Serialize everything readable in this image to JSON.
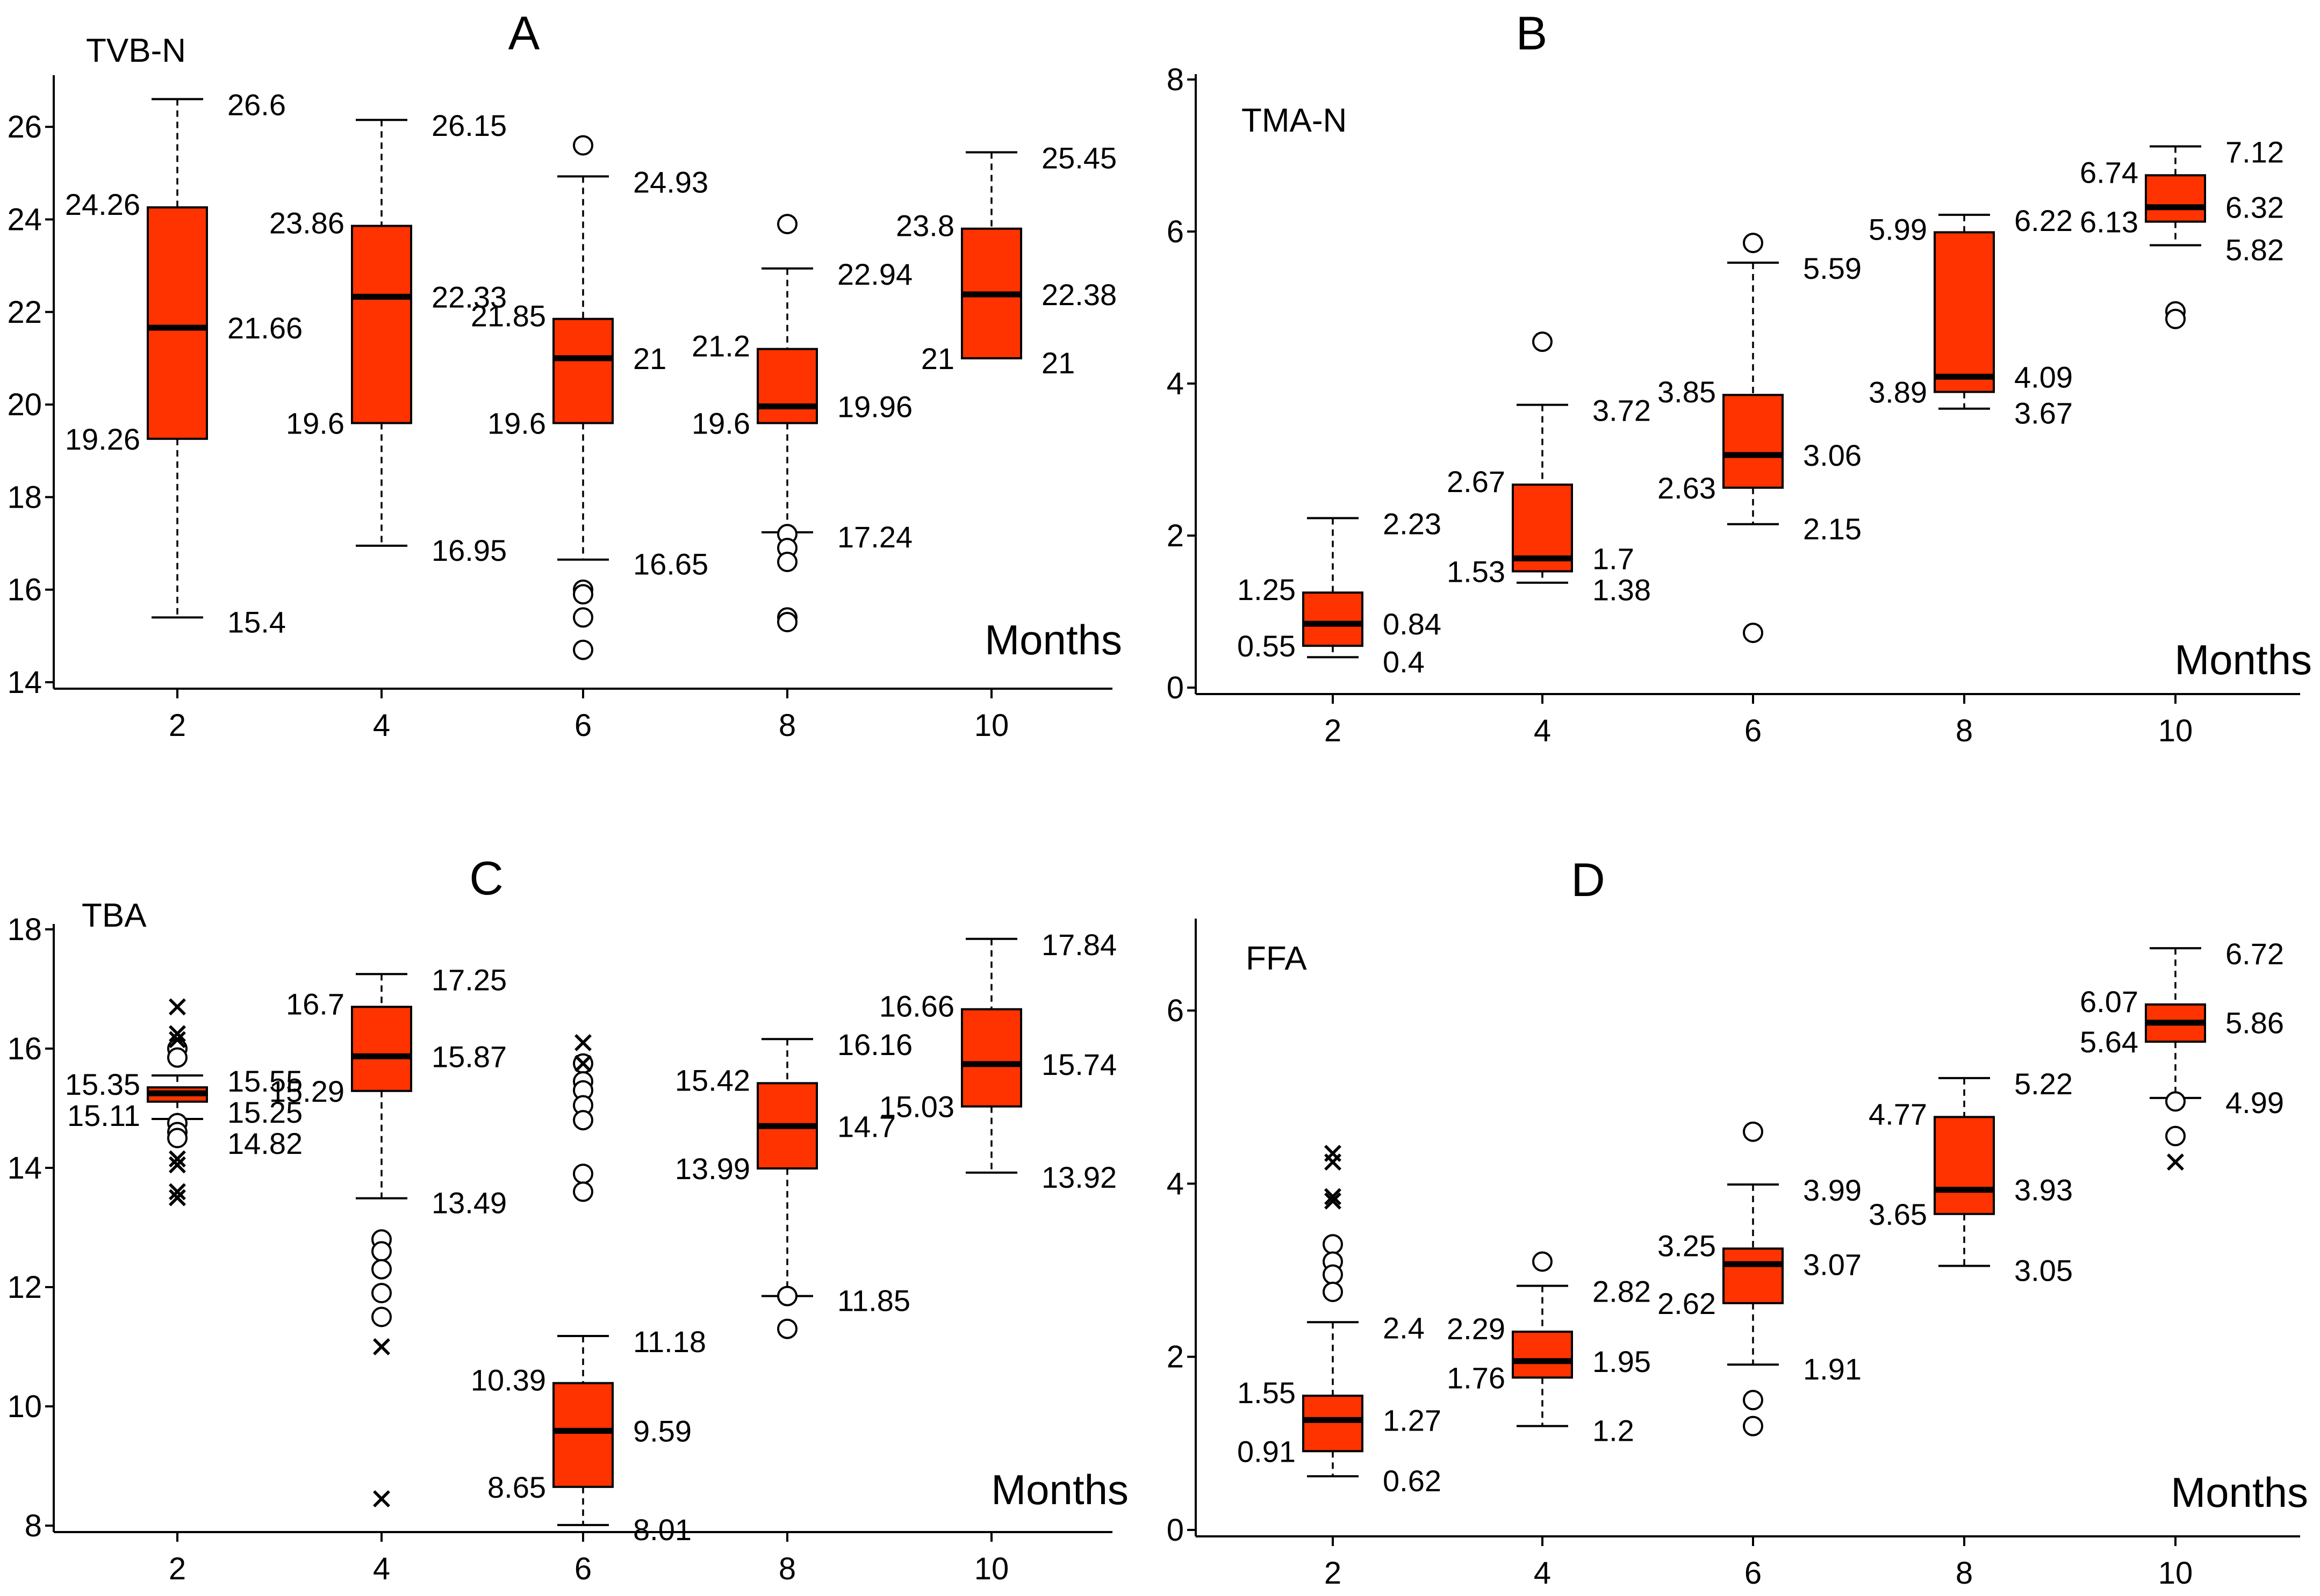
{
  "chart_data": [
    {
      "type": "box",
      "letter": "A",
      "title": "TVB-N",
      "xlabel": "Months",
      "categories": [
        "2",
        "4",
        "6",
        "8",
        "10"
      ],
      "ylim": [
        14,
        27
      ],
      "yticks": [
        14,
        16,
        18,
        20,
        22,
        24,
        26
      ],
      "boxes": [
        {
          "cat": "2",
          "low": 15.4,
          "q1": 19.26,
          "median": 21.66,
          "q3": 24.26,
          "high": 26.6,
          "labels": {
            "high": "26.6",
            "q3": "24.26",
            "median": "21.66",
            "q1": "19.26",
            "low": "15.4"
          },
          "outliers": [],
          "extremes": []
        },
        {
          "cat": "4",
          "low": 16.95,
          "q1": 19.6,
          "median": 22.33,
          "q3": 23.86,
          "high": 26.15,
          "labels": {
            "high": "26.15",
            "q3": "23.86",
            "median": "22.33",
            "q1": "19.6",
            "low": "16.95"
          },
          "outliers": [],
          "extremes": []
        },
        {
          "cat": "6",
          "low": 16.65,
          "q1": 19.6,
          "median": 21,
          "q3": 21.85,
          "high": 24.93,
          "labels": {
            "high": "24.93",
            "q3": "21.85",
            "median": "21",
            "q1": "19.6",
            "low": "16.65"
          },
          "outliers": [
            25.6,
            16.0,
            15.9,
            15.4,
            14.7
          ],
          "extremes": []
        },
        {
          "cat": "8",
          "low": 17.24,
          "q1": 19.6,
          "median": 19.96,
          "q3": 21.2,
          "high": 22.94,
          "labels": {
            "high": "22.94",
            "q3": "21.2",
            "median": "19.96",
            "q1": "19.6",
            "low": "17.24"
          },
          "outliers": [
            23.9,
            17.2,
            16.9,
            16.6,
            15.4,
            15.3
          ],
          "extremes": []
        },
        {
          "cat": "10",
          "low": 21,
          "q1": 21,
          "median": 22.38,
          "q3": 23.8,
          "high": 25.45,
          "labels": {
            "high": "25.45",
            "q3": "23.8",
            "median": "22.38",
            "q1": "21",
            "low": "21"
          },
          "outliers": [],
          "extremes": []
        }
      ]
    },
    {
      "type": "box",
      "letter": "B",
      "title": "TMA-N",
      "xlabel": "Months",
      "categories": [
        "2",
        "4",
        "6",
        "8",
        "10"
      ],
      "ylim": [
        0,
        8
      ],
      "yticks": [
        0,
        2,
        4,
        6,
        8
      ],
      "boxes": [
        {
          "cat": "2",
          "low": 0.4,
          "q1": 0.55,
          "median": 0.84,
          "q3": 1.25,
          "high": 2.23,
          "labels": {
            "high": "2.23",
            "q3": "1.25",
            "median": "0.84",
            "q1": "0.55",
            "low": "0.4"
          },
          "outliers": [],
          "extremes": []
        },
        {
          "cat": "4",
          "low": 1.38,
          "q1": 1.53,
          "median": 1.7,
          "q3": 2.67,
          "high": 3.72,
          "labels": {
            "high": "3.72",
            "q3": "2.67",
            "median": "1.7",
            "q1": "1.53",
            "low": "1.38"
          },
          "outliers": [
            4.55
          ],
          "extremes": []
        },
        {
          "cat": "6",
          "low": 2.15,
          "q1": 2.63,
          "median": 3.06,
          "q3": 3.85,
          "high": 5.59,
          "labels": {
            "high": "5.59",
            "q3": "3.85",
            "median": "3.06",
            "q1": "2.63",
            "low": "2.15"
          },
          "outliers": [
            5.85,
            0.72
          ],
          "extremes": []
        },
        {
          "cat": "8",
          "low": 3.67,
          "q1": 3.89,
          "median": 4.09,
          "q3": 5.99,
          "high": 6.22,
          "labels": {
            "high": "6.22",
            "q3": "5.99",
            "median": "4.09",
            "q1": "3.89",
            "low": "3.67"
          },
          "outliers": [],
          "extremes": []
        },
        {
          "cat": "10",
          "low": 5.82,
          "q1": 6.13,
          "median": 6.32,
          "q3": 6.74,
          "high": 7.12,
          "labels": {
            "high": "7.12",
            "q3": "6.74",
            "median": "6.32",
            "q1": "6.13",
            "low": "5.82"
          },
          "outliers": [
            4.95,
            4.85
          ],
          "extremes": []
        }
      ]
    },
    {
      "type": "box",
      "letter": "C",
      "title": "TBA",
      "xlabel": "Months",
      "categories": [
        "2",
        "4",
        "6",
        "8",
        "10"
      ],
      "ylim": [
        8,
        18
      ],
      "yticks": [
        8,
        10,
        12,
        14,
        16,
        18
      ],
      "boxes": [
        {
          "cat": "2",
          "low": 14.82,
          "q1": 15.11,
          "median": 15.25,
          "q3": 15.35,
          "high": 15.55,
          "labels": {
            "high": "15.55",
            "q3": "15.35",
            "median": "15.25",
            "q1": "15.11",
            "low": "14.82"
          },
          "outliers": [
            16.0,
            15.85,
            14.75,
            14.6,
            14.5
          ],
          "extremes": [
            16.7,
            16.25,
            16.15,
            14.15,
            14.05,
            13.6,
            13.5
          ]
        },
        {
          "cat": "4",
          "low": 13.49,
          "q1": 15.29,
          "median": 15.87,
          "q3": 16.7,
          "high": 17.25,
          "labels": {
            "high": "17.25",
            "q3": "16.7",
            "median": "15.87",
            "q1": "15.29",
            "low": "13.49"
          },
          "outliers": [
            12.8,
            12.6,
            12.3,
            11.9,
            11.5
          ],
          "extremes": [
            11.0,
            8.45
          ]
        },
        {
          "cat": "6",
          "low": 8.01,
          "q1": 8.65,
          "median": 9.59,
          "q3": 10.39,
          "high": 11.18,
          "labels": {
            "high": "11.18",
            "q3": "10.39",
            "median": "9.59",
            "q1": "8.65",
            "low": "8.01"
          },
          "outliers": [
            15.75,
            15.45,
            15.3,
            15.05,
            14.8,
            13.9,
            13.6
          ],
          "extremes": [
            16.1,
            15.75
          ]
        },
        {
          "cat": "8",
          "low": 11.85,
          "q1": 13.99,
          "median": 14.7,
          "q3": 15.42,
          "high": 16.16,
          "labels": {
            "high": "16.16",
            "q3": "15.42",
            "median": "14.7",
            "q1": "13.99",
            "low": "11.85"
          },
          "outliers": [
            11.85,
            11.3
          ],
          "extremes": []
        },
        {
          "cat": "10",
          "low": 13.92,
          "q1": 15.03,
          "median": 15.74,
          "q3": 16.66,
          "high": 17.84,
          "labels": {
            "high": "17.84",
            "q3": "16.66",
            "median": "15.74",
            "q1": "15.03",
            "low": "13.92"
          },
          "outliers": [],
          "extremes": []
        }
      ]
    },
    {
      "type": "box",
      "letter": "D",
      "title": "FFA",
      "xlabel": "Months",
      "categories": [
        "2",
        "4",
        "6",
        "8",
        "10"
      ],
      "ylim": [
        0,
        7
      ],
      "yticks": [
        0,
        2,
        4,
        6
      ],
      "boxes": [
        {
          "cat": "2",
          "low": 0.62,
          "q1": 0.91,
          "median": 1.27,
          "q3": 1.55,
          "high": 2.4,
          "labels": {
            "high": "2.4",
            "q3": "1.55",
            "median": "1.27",
            "q1": "0.91",
            "low": "0.62"
          },
          "outliers": [
            3.3,
            3.1,
            2.95,
            2.75
          ],
          "extremes": [
            4.35,
            4.25,
            3.85,
            3.8
          ]
        },
        {
          "cat": "4",
          "low": 1.2,
          "q1": 1.76,
          "median": 1.95,
          "q3": 2.29,
          "high": 2.82,
          "labels": {
            "high": "2.82",
            "q3": "2.29",
            "median": "1.95",
            "q1": "1.76",
            "low": "1.2"
          },
          "outliers": [
            3.1
          ],
          "extremes": []
        },
        {
          "cat": "6",
          "low": 1.91,
          "q1": 2.62,
          "median": 3.07,
          "q3": 3.25,
          "high": 3.99,
          "labels": {
            "high": "3.99",
            "q3": "3.25",
            "median": "3.07",
            "q1": "2.62",
            "low": "1.91"
          },
          "outliers": [
            4.6,
            1.5,
            1.2
          ],
          "extremes": []
        },
        {
          "cat": "8",
          "low": 3.05,
          "q1": 3.65,
          "median": 3.93,
          "q3": 4.77,
          "high": 5.22,
          "labels": {
            "high": "5.22",
            "q3": "4.77",
            "median": "3.93",
            "q1": "3.65",
            "low": "3.05"
          },
          "outliers": [],
          "extremes": []
        },
        {
          "cat": "10",
          "low": 4.99,
          "q1": 5.64,
          "median": 5.86,
          "q3": 6.07,
          "high": 6.72,
          "labels": {
            "high": "6.72",
            "q3": "6.07",
            "median": "5.86",
            "q1": "5.64",
            "low": "4.99"
          },
          "outliers": [
            4.95,
            4.55
          ],
          "extremes": [
            4.25
          ]
        }
      ]
    }
  ]
}
